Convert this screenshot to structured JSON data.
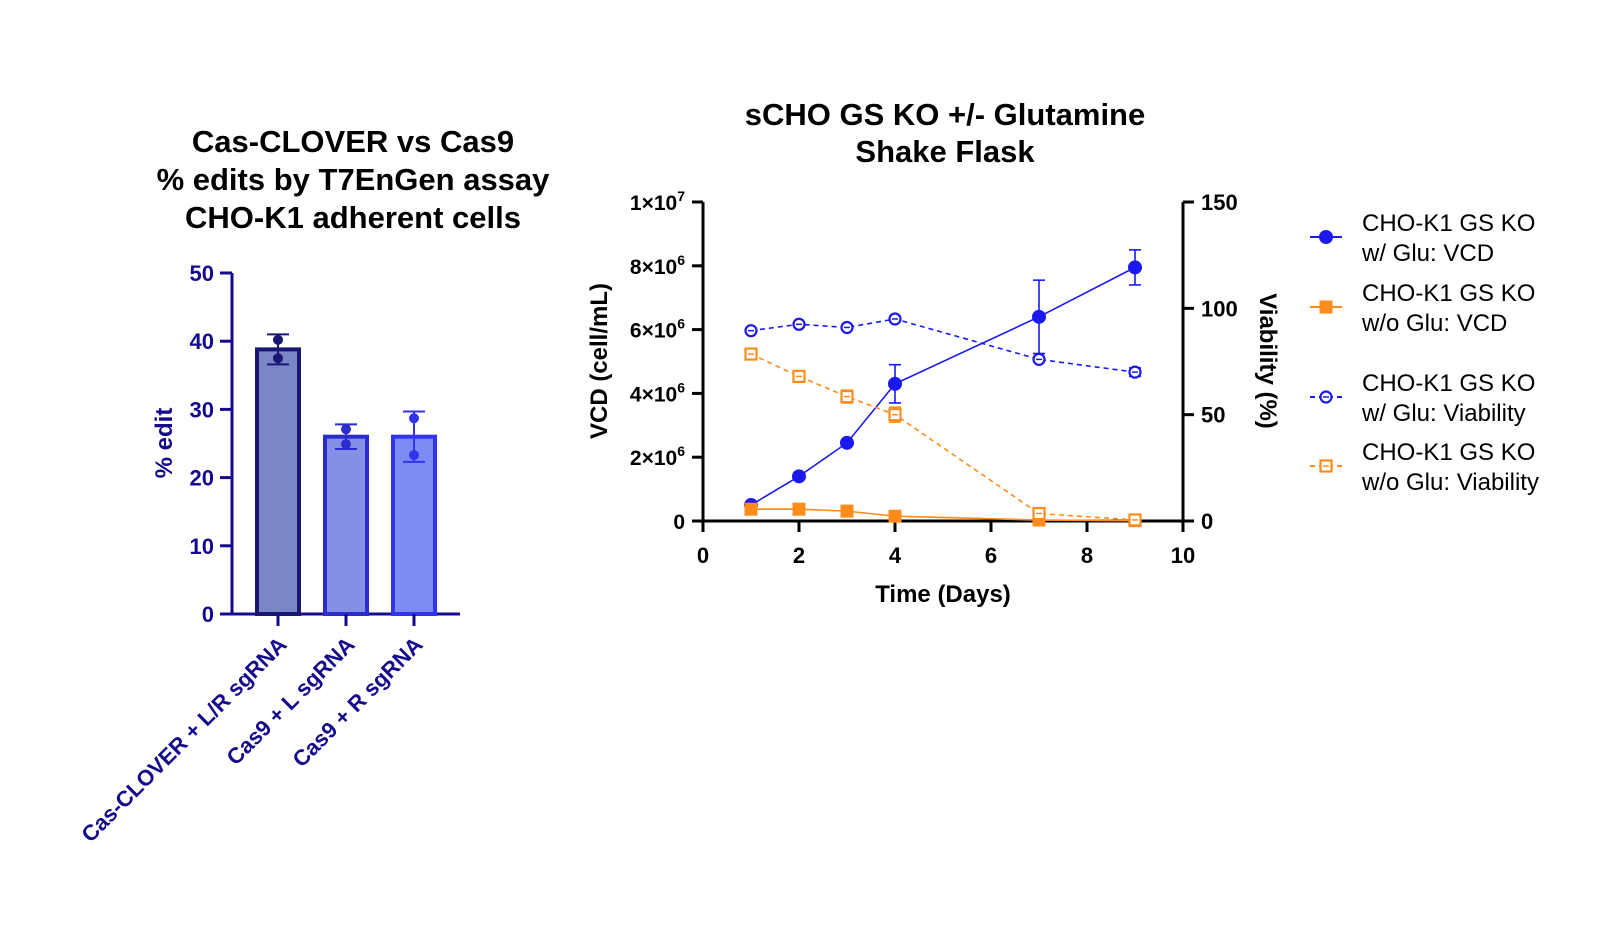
{
  "chart_data": [
    {
      "type": "bar",
      "title_lines": [
        "Cas-CLOVER vs Cas9",
        "% edits by T7EnGen assay",
        "CHO-K1 adherent cells"
      ],
      "ylabel": "% edit",
      "ylim": [
        0,
        50
      ],
      "yticks": [
        "0",
        "10",
        "20",
        "30",
        "40",
        "50"
      ],
      "categories": [
        "Cas-CLOVER + L/R sgRNA",
        "Cas9 + L sgRNA",
        "Cas9 + R sgRNA"
      ],
      "values": [
        38.8,
        26.0,
        26.0
      ],
      "error": [
        [
          36.6,
          41.0
        ],
        [
          24.2,
          27.8
        ],
        [
          22.3,
          29.7
        ]
      ],
      "points": [
        [
          40.2,
          37.5
        ],
        [
          27.1,
          24.9
        ],
        [
          28.7,
          23.3
        ]
      ],
      "colors": {
        "axis": "#140a8c",
        "bar_fill": [
          "#7b86c4",
          "#8290e6",
          "#7d8bf4"
        ],
        "bar_stroke": [
          "#1a1673",
          "#2a2ccc",
          "#3333ee"
        ]
      }
    },
    {
      "type": "line",
      "title_lines": [
        "sCHO GS KO +/- Glutamine",
        "Shake Flask"
      ],
      "xlabel": "Time (Days)",
      "ylabel_left": "VCD (cell/mL)",
      "ylabel_right": "Viability (%)",
      "xlim": [
        0,
        10
      ],
      "xticks": [
        "0",
        "2",
        "4",
        "6",
        "8",
        "10"
      ],
      "ylim_left": [
        0,
        10000000
      ],
      "yticks_left": [
        {
          "mant": "0",
          "exp": ""
        },
        {
          "mant": "2×10",
          "exp": "6"
        },
        {
          "mant": "4×10",
          "exp": "6"
        },
        {
          "mant": "6×10",
          "exp": "6"
        },
        {
          "mant": "8×10",
          "exp": "6"
        },
        {
          "mant": "1×10",
          "exp": "7"
        }
      ],
      "ylim_right": [
        0,
        150
      ],
      "yticks_right": [
        "0",
        "50",
        "100",
        "150"
      ],
      "series": [
        {
          "name": "CHO-K1 GS KO w/ Glu: VCD",
          "axis": "left",
          "color": "#1a1aee",
          "marker": "circle",
          "filled": true,
          "dashed": false,
          "x": [
            1,
            2,
            3,
            4,
            7,
            9
          ],
          "y": [
            500000,
            1400000,
            2450000,
            4300000,
            6400000,
            7950000
          ],
          "err": [
            0,
            0,
            0,
            600000,
            1150000,
            550000
          ]
        },
        {
          "name": "CHO-K1 GS KO w/o Glu: VCD",
          "axis": "left",
          "color": "#ff8c1a",
          "marker": "square",
          "filled": true,
          "dashed": false,
          "x": [
            1,
            2,
            3,
            4,
            7,
            9
          ],
          "y": [
            370000,
            370000,
            310000,
            150000,
            30000,
            10000
          ],
          "err": [
            0,
            0,
            0,
            0,
            0,
            0
          ]
        },
        {
          "name": "CHO-K1 GS KO w/ Glu: Viability",
          "axis": "right",
          "color": "#1a1aee",
          "marker": "circle",
          "filled": false,
          "dashed": true,
          "x": [
            1,
            2,
            3,
            4,
            7,
            9
          ],
          "y": [
            89.5,
            92.5,
            91.0,
            95.0,
            76.0,
            70.0
          ],
          "err": [
            0,
            0,
            0,
            0,
            0,
            2.0
          ]
        },
        {
          "name": "CHO-K1 GS KO w/o Glu: Viability",
          "axis": "right",
          "color": "#ff8c1a",
          "marker": "square",
          "filled": false,
          "dashed": true,
          "x": [
            1,
            2,
            3,
            4,
            7,
            9
          ],
          "y": [
            78.5,
            68.0,
            58.5,
            50.0,
            3.5,
            0.5
          ],
          "err": [
            0,
            1.5,
            3.0,
            3.5,
            0,
            0
          ]
        }
      ],
      "legend": [
        {
          "line1": "CHO-K1 GS KO",
          "line2": "w/ Glu: VCD"
        },
        {
          "line1": "CHO-K1 GS KO",
          "line2": "w/o Glu: VCD"
        },
        {
          "line1": "CHO-K1 GS KO",
          "line2": "w/ Glu: Viability"
        },
        {
          "line1": "CHO-K1 GS KO",
          "line2": "w/o Glu: Viability"
        }
      ]
    }
  ]
}
